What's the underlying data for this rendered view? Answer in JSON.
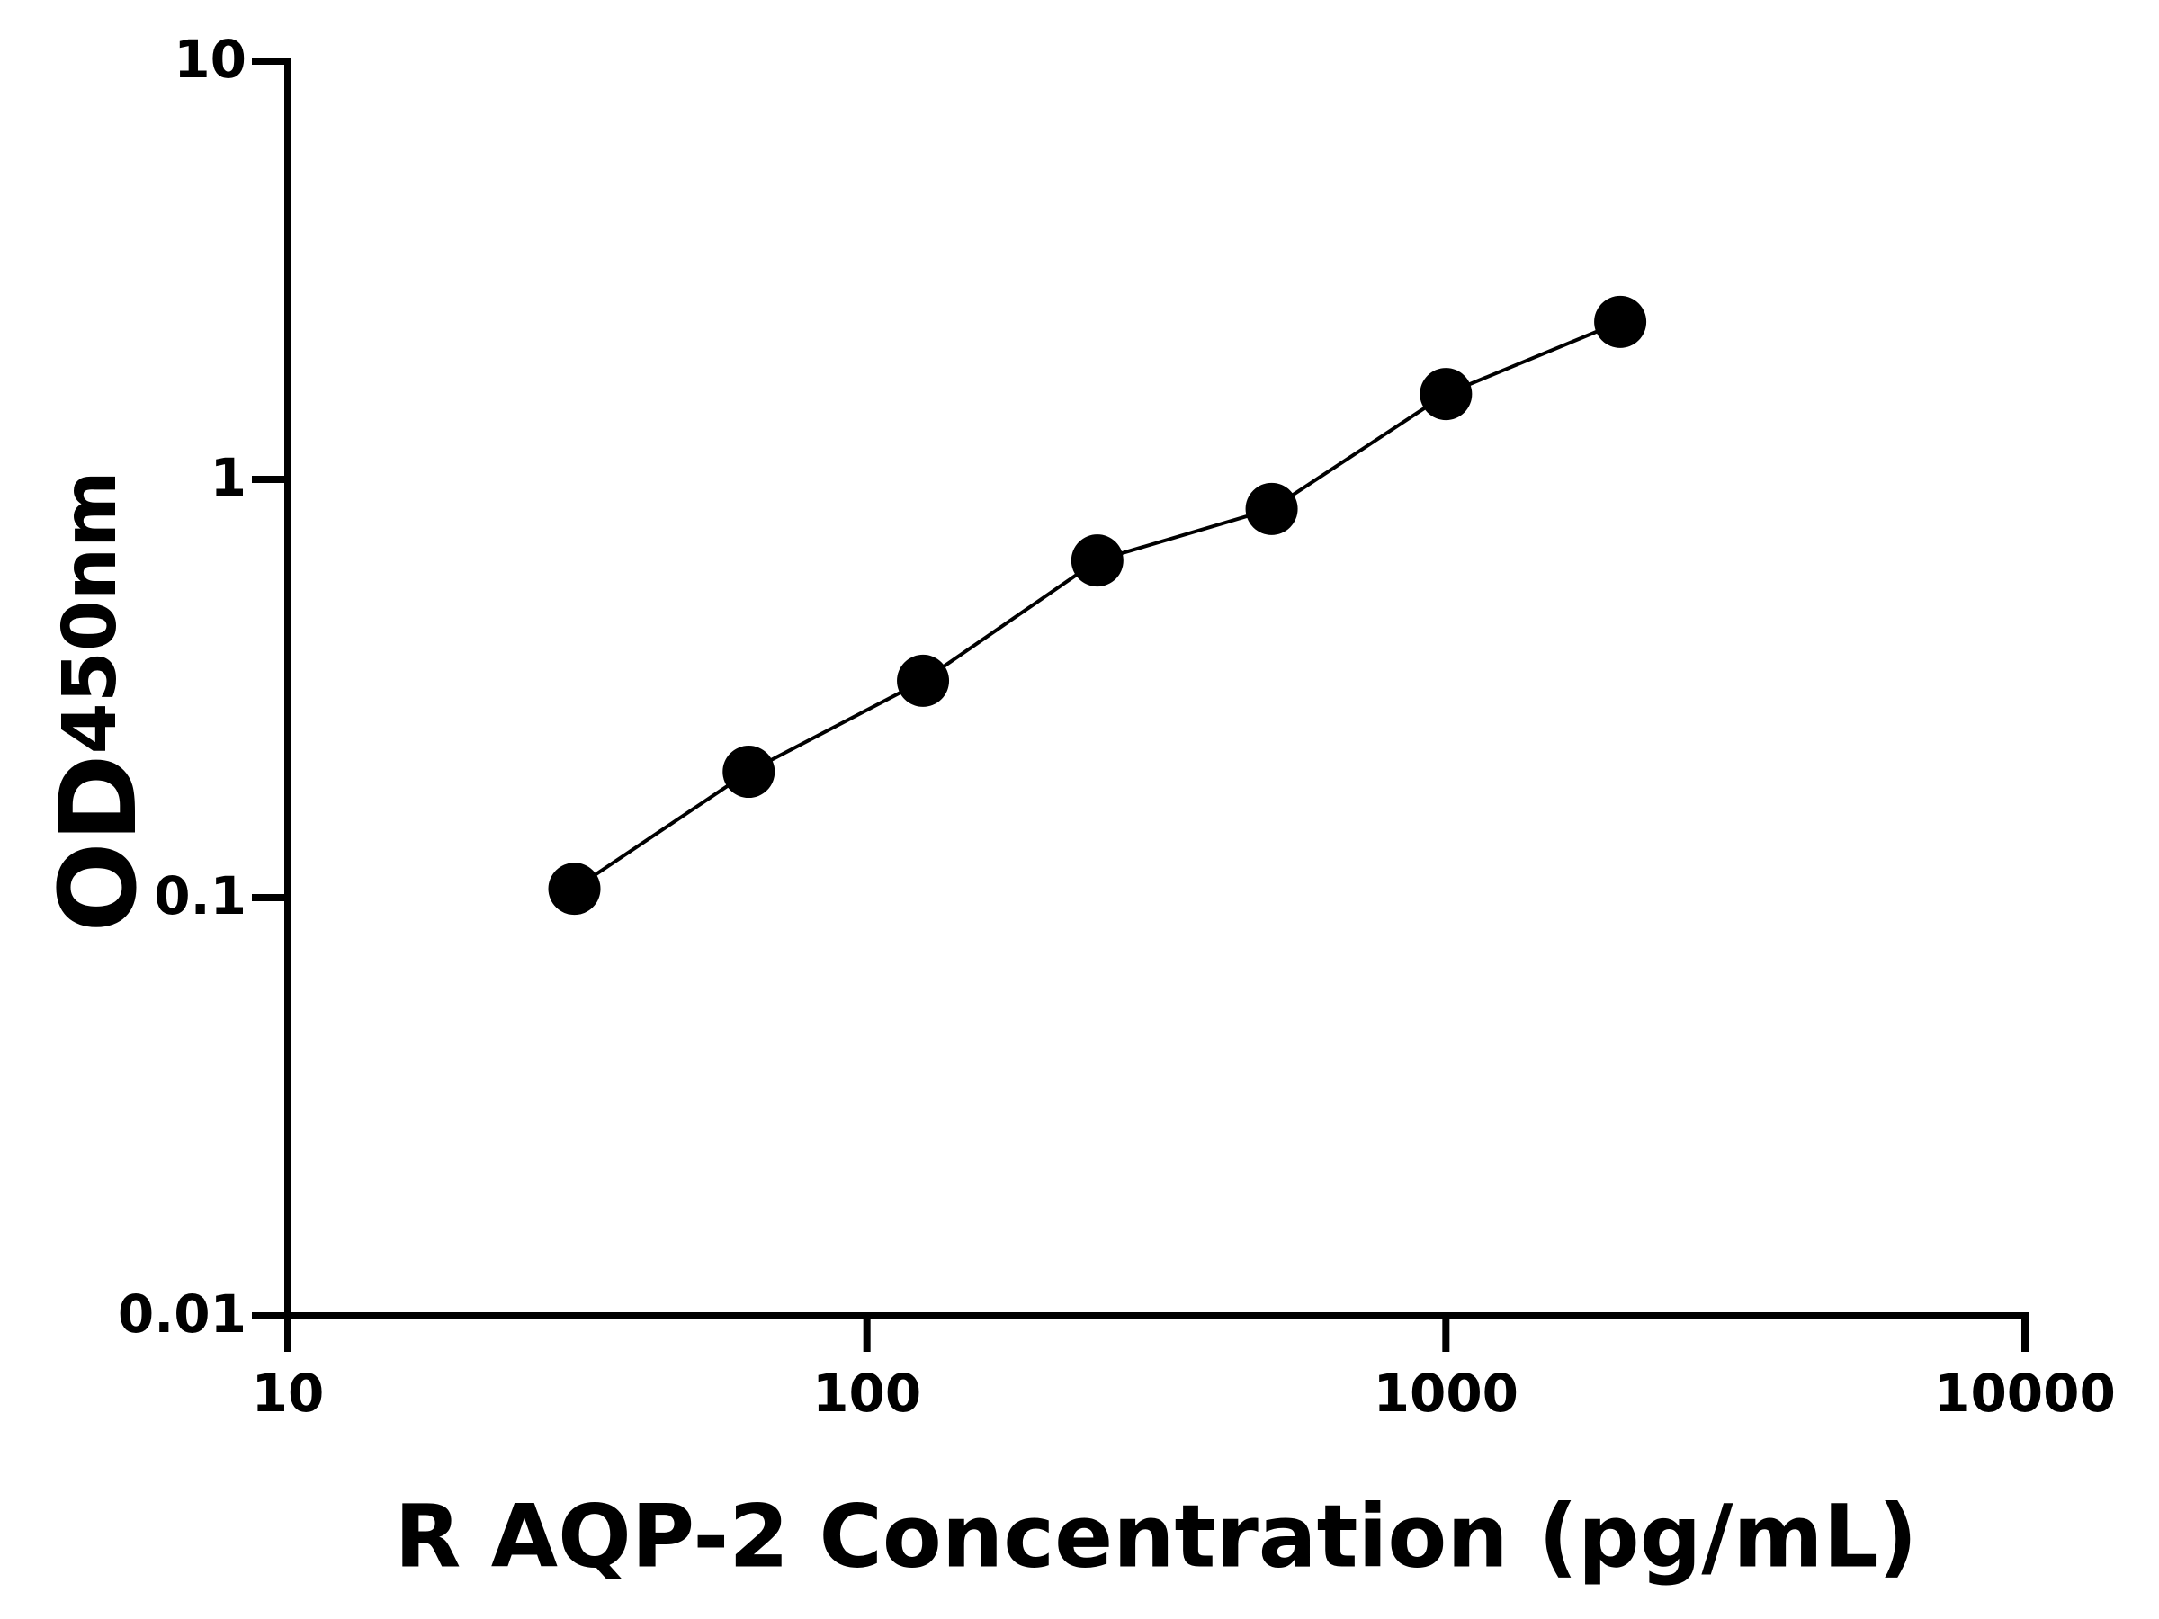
{
  "chart_data": {
    "type": "scatter",
    "x_label": "R AQP-2 Concentration (pg/mL)",
    "y_label": "OD",
    "y_label_sub": "450nm",
    "x": [
      31.25,
      62.5,
      125,
      250,
      500,
      1000,
      2000
    ],
    "values": [
      0.105,
      0.2,
      0.33,
      0.64,
      0.85,
      1.6,
      2.38
    ],
    "color": "#000000",
    "xlog": true,
    "ylog": true,
    "xlim": [
      10,
      10000
    ],
    "ylim": [
      0.01,
      10
    ],
    "xticks": [
      10,
      100,
      1000,
      10000
    ],
    "yticks": [
      0.01,
      0.1,
      1,
      10
    ]
  }
}
